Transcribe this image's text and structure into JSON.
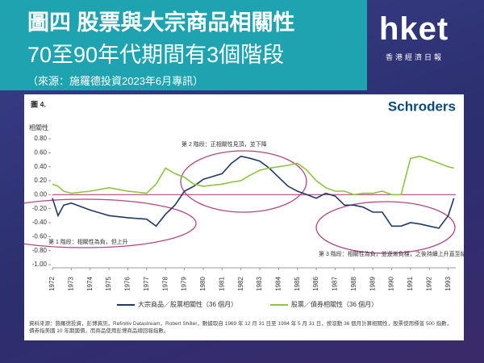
{
  "header": {
    "title": "圖四 股票與大宗商品相關性",
    "subtitle": "70至90年代期間有3個階段",
    "source": "（來源：施羅德投資2023年6月專訊）",
    "logo": "hket",
    "logo_sub": "香港經濟日報"
  },
  "chart_data": {
    "type": "line",
    "figure_label": "圖 4.",
    "brand": "Schroders",
    "ylabel": "相關性",
    "x": [
      1972,
      1972.3,
      1972.6,
      1973,
      1974,
      1975,
      1976,
      1977,
      1977.5,
      1978,
      1978.5,
      1979,
      1979.5,
      1980,
      1981,
      1981.5,
      1982,
      1982.5,
      1983,
      1983.5,
      1984,
      1984.5,
      1985,
      1985.5,
      1986,
      1986.5,
      1987,
      1987.5,
      1988,
      1988.5,
      1989,
      1989.5,
      1990,
      1990.5,
      1991,
      1991.5,
      1992,
      1992.5,
      1993,
      1993.3
    ],
    "series": [
      {
        "name": "大宗商品／股票相關性（36 個月）",
        "color": "#1f3a68",
        "values": [
          -0.05,
          -0.3,
          -0.15,
          -0.12,
          -0.22,
          -0.3,
          -0.33,
          -0.35,
          -0.45,
          -0.28,
          -0.15,
          0.05,
          0.12,
          0.22,
          0.3,
          0.45,
          0.55,
          0.52,
          0.48,
          0.38,
          0.25,
          0.12,
          0.05,
          0.0,
          -0.05,
          0.02,
          -0.02,
          -0.15,
          -0.15,
          -0.18,
          -0.25,
          -0.25,
          -0.45,
          -0.45,
          -0.4,
          -0.42,
          -0.45,
          -0.48,
          -0.3,
          -0.05
        ]
      },
      {
        "name": "股票／債券相關性（36 個月）",
        "color": "#8cc63f",
        "values": [
          0.15,
          0.12,
          0.05,
          0.02,
          0.05,
          0.1,
          0.05,
          0.02,
          0.15,
          0.38,
          0.3,
          0.25,
          0.15,
          0.12,
          0.15,
          0.18,
          0.2,
          0.28,
          0.35,
          0.38,
          0.4,
          0.42,
          0.45,
          0.35,
          0.2,
          0.1,
          0.05,
          0.05,
          0.0,
          0.02,
          0.02,
          0.05,
          0.0,
          0.0,
          0.52,
          0.55,
          0.5,
          0.45,
          0.4,
          0.38
        ]
      }
    ],
    "xlim": [
      1972,
      1993.4
    ],
    "xticks": [
      1972,
      1973,
      1974,
      1975,
      1976,
      1977,
      1978,
      1979,
      1980,
      1981,
      1982,
      1983,
      1984,
      1985,
      1986,
      1987,
      1988,
      1989,
      1990,
      1991,
      1992,
      1993
    ],
    "ylim": [
      -1,
      0.8
    ],
    "yticks": [
      {
        "value": 0.8,
        "label": "0.80"
      },
      {
        "value": 0.6,
        "label": "0.60"
      },
      {
        "value": 0.4,
        "label": "0.40"
      },
      {
        "value": 0.2,
        "label": "0.20"
      },
      {
        "value": 0,
        "label": "0.00"
      },
      {
        "value": -0.2,
        "label": "-0.20"
      },
      {
        "value": -0.4,
        "label": "-0.40"
      },
      {
        "value": -0.6,
        "label": "-0.60"
      },
      {
        "value": -0.8,
        "label": "-0.80"
      },
      {
        "value": -1,
        "label": "-1.00"
      }
    ],
    "annotations": [
      "第 2 階段：正相關性見頂，並下降",
      "第 1 階段：相關性為負，但上升",
      "第 3 階段：相關性為負，並逐漸負穩，之後持續上升直至結束"
    ],
    "note": "資料來源：施羅德投資，彭博資訊，Refinitiv Datastream，Robert Shiller，數據取自 1969 年 12 月 31 日至 1994 年 5 月 31 日，按滾動 36 個月計算相關性，股票使用標普 500 指數，債券指美國 10 年期國債，而商品使用彭博商品總回報指數。",
    "legend": "bottom"
  }
}
